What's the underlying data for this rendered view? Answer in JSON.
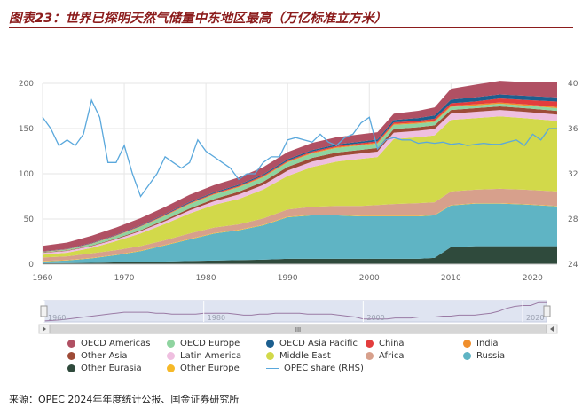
{
  "title": "图表23：世界已探明天然气储量中东地区最高（万亿标准立方米）",
  "source": "来源：OPEC 2024年年度统计公报、国金证券研究所",
  "navigator": {
    "labels": [
      "1960",
      "1980",
      "2000",
      "2020"
    ],
    "handle_label": "III"
  },
  "chart_data": {
    "type": "area",
    "stacked": true,
    "x": [
      1960,
      1963,
      1966,
      1969,
      1972,
      1975,
      1978,
      1981,
      1984,
      1987,
      1990,
      1993,
      1996,
      1999,
      2001,
      2003,
      2006,
      2008,
      2010,
      2013,
      2016,
      2019,
      2023
    ],
    "xticks": [
      "1960",
      "1970",
      "1980",
      "1990",
      "2000",
      "2010",
      "2020"
    ],
    "yticks_left": [
      "0",
      "50",
      "100",
      "150",
      "200"
    ],
    "yticks_right": [
      "24",
      "28",
      "32",
      "36",
      "40"
    ],
    "ylim": [
      0,
      200
    ],
    "ylim_right": [
      24,
      40
    ],
    "series": [
      {
        "name": "Other Eurasia",
        "color": "#2f4a3c",
        "values": [
          1,
          1.2,
          1.5,
          2,
          2.5,
          3,
          3.5,
          4,
          4.5,
          5,
          6,
          6,
          6,
          6,
          6,
          6,
          6,
          7,
          19,
          20,
          20,
          20,
          20
        ]
      },
      {
        "name": "Russia",
        "color": "#5fb4c4",
        "values": [
          2,
          3,
          5,
          8,
          12,
          18,
          24,
          30,
          33,
          38,
          46,
          48,
          48,
          47,
          47,
          47,
          47,
          47,
          46,
          47,
          47,
          46,
          44
        ]
      },
      {
        "name": "Other Europe",
        "color": "#f6b928",
        "values": [
          0.5,
          0.5,
          0.5,
          0.6,
          0.6,
          0.6,
          0.6,
          0.6,
          0.6,
          0.6,
          0.6,
          0.5,
          0.5,
          0.5,
          0.5,
          0.5,
          0.5,
          0.5,
          0.5,
          0.5,
          0.5,
          0.5,
          0.5
        ]
      },
      {
        "name": "Africa",
        "color": "#d7a08c",
        "values": [
          4,
          4,
          5,
          5,
          5,
          5,
          6,
          6,
          6,
          7,
          8,
          9,
          10,
          11,
          12,
          13,
          14,
          14,
          15,
          15,
          16,
          16,
          16
        ]
      },
      {
        "name": "Middle East",
        "color": "#d2d94a",
        "values": [
          3,
          4,
          6,
          10,
          14,
          18,
          22,
          25,
          28,
          32,
          37,
          44,
          49,
          52,
          53,
          72,
          73,
          74,
          79,
          79,
          80,
          79,
          78
        ]
      },
      {
        "name": "Latin America",
        "color": "#efbfe0",
        "values": [
          2,
          2,
          2,
          2,
          2.5,
          3,
          3.5,
          4,
          5,
          5,
          6,
          6,
          6,
          6,
          6,
          7,
          7,
          7,
          7,
          7,
          7,
          7,
          7
        ]
      },
      {
        "name": "Other Asia",
        "color": "#9e4b37",
        "values": [
          0.5,
          0.5,
          0.6,
          0.8,
          1,
          1.5,
          2,
          2.5,
          3,
          3.5,
          4,
          4,
          4,
          4,
          4,
          4,
          4,
          4,
          4,
          4,
          4,
          4,
          4
        ]
      },
      {
        "name": "OECD Europe",
        "color": "#8fd4a0",
        "values": [
          0.5,
          1,
          2,
          3,
          4,
          4.5,
          5,
          5,
          5,
          5,
          5,
          5,
          5,
          5,
          5,
          4.5,
          4,
          4,
          3.5,
          3,
          3,
          3,
          3
        ]
      },
      {
        "name": "India",
        "color": "#f08f2c",
        "values": [
          0.2,
          0.2,
          0.2,
          0.3,
          0.3,
          0.4,
          0.5,
          0.6,
          0.7,
          0.8,
          0.9,
          1,
          1,
          1,
          1,
          1.1,
          1.1,
          1.1,
          1.2,
          1.3,
          1.3,
          1.3,
          1.4
        ]
      },
      {
        "name": "China",
        "color": "#e33d3d",
        "values": [
          0.3,
          0.3,
          0.3,
          0.4,
          0.5,
          0.6,
          0.7,
          0.8,
          0.9,
          1,
          1,
          1.2,
          1.3,
          1.4,
          1.5,
          1.8,
          2,
          2.3,
          2.8,
          3.2,
          4.5,
          5,
          6
        ]
      },
      {
        "name": "OECD Asia Pacific",
        "color": "#1c5f8f",
        "values": [
          0.3,
          0.3,
          0.4,
          0.5,
          0.6,
          0.8,
          1,
          1,
          1.2,
          1.3,
          1.5,
          1.5,
          1.6,
          1.8,
          2,
          2.5,
          3,
          3.5,
          4,
          4.5,
          4.5,
          4.5,
          4.5
        ]
      },
      {
        "name": "OECD Americas",
        "color": "#b05063",
        "values": [
          6,
          7,
          8,
          8,
          8,
          8,
          8,
          8,
          8,
          8,
          8,
          8,
          8,
          8,
          8,
          7,
          8,
          9,
          12,
          14,
          15,
          15,
          17
        ]
      }
    ],
    "line_series": {
      "name": "OPEC share (RHS)",
      "color": "#5aa8dc",
      "axis": "right",
      "x": [
        1960,
        1961,
        1962,
        1963,
        1964,
        1965,
        1966,
        1967,
        1968,
        1969,
        1970,
        1971,
        1972,
        1973,
        1974,
        1975,
        1976,
        1977,
        1978,
        1979,
        1980,
        1981,
        1982,
        1983,
        1984,
        1985,
        1986,
        1987,
        1988,
        1989,
        1990,
        1991,
        1992,
        1993,
        1994,
        1995,
        1996,
        1997,
        1998,
        1999,
        2000,
        2001,
        2002,
        2003,
        2004,
        2005,
        2006,
        2007,
        2008,
        2009,
        2010,
        2011,
        2012,
        2013,
        2014,
        2015,
        2016,
        2017,
        2018,
        2019,
        2020,
        2021,
        2022,
        2023
      ],
      "values": [
        37,
        36,
        34.5,
        35,
        34.5,
        35.5,
        38.5,
        37,
        33,
        33,
        34.5,
        32,
        30,
        31,
        32,
        33.5,
        33,
        32.5,
        33,
        35,
        34,
        33.5,
        33,
        32.5,
        31.5,
        32,
        32,
        33,
        33.5,
        33.5,
        35,
        35.2,
        35,
        34.8,
        35.5,
        34.8,
        34.5,
        35.2,
        35.5,
        36.5,
        37,
        34.2,
        35,
        35.2,
        35,
        35,
        34.7,
        34.8,
        34.7,
        34.8,
        34.6,
        34.7,
        34.5,
        34.6,
        34.7,
        34.6,
        34.6,
        34.8,
        35,
        34.5,
        35.5,
        35,
        36,
        36
      ]
    },
    "navigator_line": [
      1,
      1.5,
      2,
      3,
      4,
      5,
      6,
      7,
      8,
      9,
      10,
      10,
      10,
      10,
      9,
      9,
      8,
      8,
      8,
      8,
      9,
      9,
      9,
      9,
      8,
      7,
      7,
      8,
      8,
      9,
      9,
      9,
      9,
      8,
      8,
      8,
      8,
      7,
      6,
      5,
      3,
      3,
      3,
      3,
      4,
      4,
      4,
      5,
      5,
      5,
      6,
      6,
      7,
      7,
      7,
      8,
      9,
      11,
      14,
      16,
      17,
      17,
      20,
      20
    ],
    "xlabel": "",
    "ylabel": "",
    "ylabel_right": ""
  },
  "legend": [
    {
      "label": "OECD Americas",
      "color": "#b05063",
      "kind": "dot"
    },
    {
      "label": "OECD Europe",
      "color": "#8fd4a0",
      "kind": "dot"
    },
    {
      "label": "OECD Asia Pacific",
      "color": "#1c5f8f",
      "kind": "dot"
    },
    {
      "label": "China",
      "color": "#e33d3d",
      "kind": "dot"
    },
    {
      "label": "India",
      "color": "#f08f2c",
      "kind": "dot"
    },
    {
      "label": "Other Asia",
      "color": "#9e4b37",
      "kind": "dot"
    },
    {
      "label": "Latin America",
      "color": "#efbfe0",
      "kind": "dot"
    },
    {
      "label": "Middle East",
      "color": "#d2d94a",
      "kind": "dot"
    },
    {
      "label": "Africa",
      "color": "#d7a08c",
      "kind": "dot"
    },
    {
      "label": "Russia",
      "color": "#5fb4c4",
      "kind": "dot"
    },
    {
      "label": "Other Eurasia",
      "color": "#2f4a3c",
      "kind": "dot"
    },
    {
      "label": "Other Europe",
      "color": "#f6b928",
      "kind": "dot"
    },
    {
      "label": "OPEC share (RHS)",
      "color": "#5aa8dc",
      "kind": "line"
    }
  ]
}
